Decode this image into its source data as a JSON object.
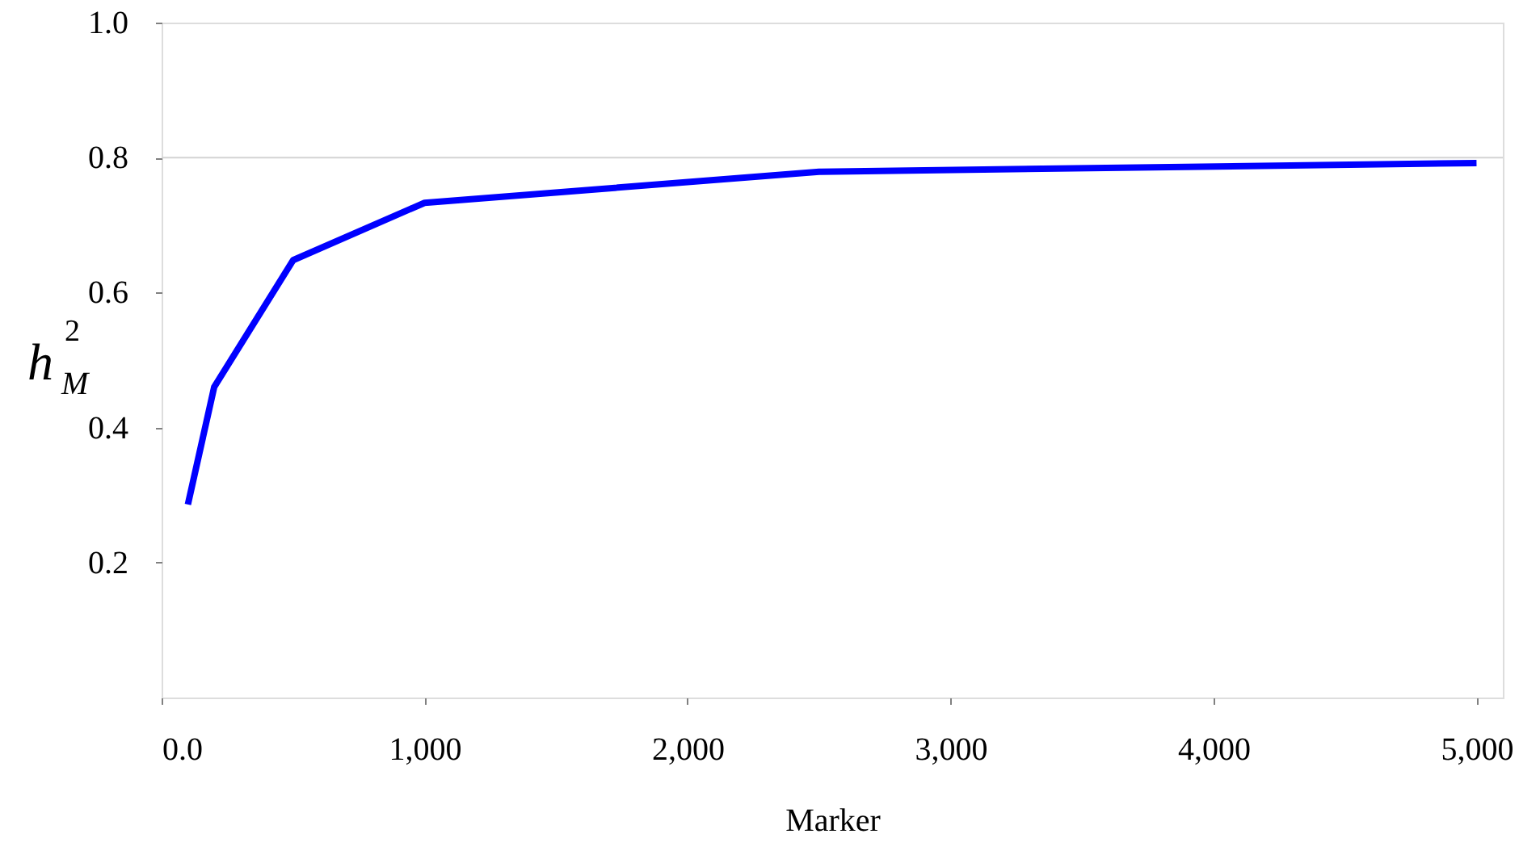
{
  "chart_data": {
    "type": "line",
    "xlabel": "Marker",
    "ylabel": "h$_{M}$$^{2}$",
    "x": [
      100,
      200,
      500,
      1000,
      2500,
      5000
    ],
    "series": [
      {
        "color": "#0000ff",
        "values": [
          0.286,
          0.46,
          0.648,
          0.733,
          0.779,
          0.792
        ]
      }
    ],
    "xlim": [
      0,
      5100
    ],
    "ylim": [
      0,
      1
    ],
    "xticks": [
      {
        "value": 0,
        "label": "0.0"
      },
      {
        "value": 1000,
        "label": "1,000"
      },
      {
        "value": 2000,
        "label": "2,000"
      },
      {
        "value": 3000,
        "label": "3,000"
      },
      {
        "value": 4000,
        "label": "4,000"
      },
      {
        "value": 5000,
        "label": "5,000"
      }
    ],
    "yticks": [
      0.2,
      0.4,
      0.6,
      0.8,
      {
        "value": 1,
        "label": "1.0"
      }
    ],
    "ref_lines": [
      {
        "axis": "y",
        "value": 0.8,
        "color": "#d3d3d3"
      }
    ],
    "line_style": "solid"
  }
}
